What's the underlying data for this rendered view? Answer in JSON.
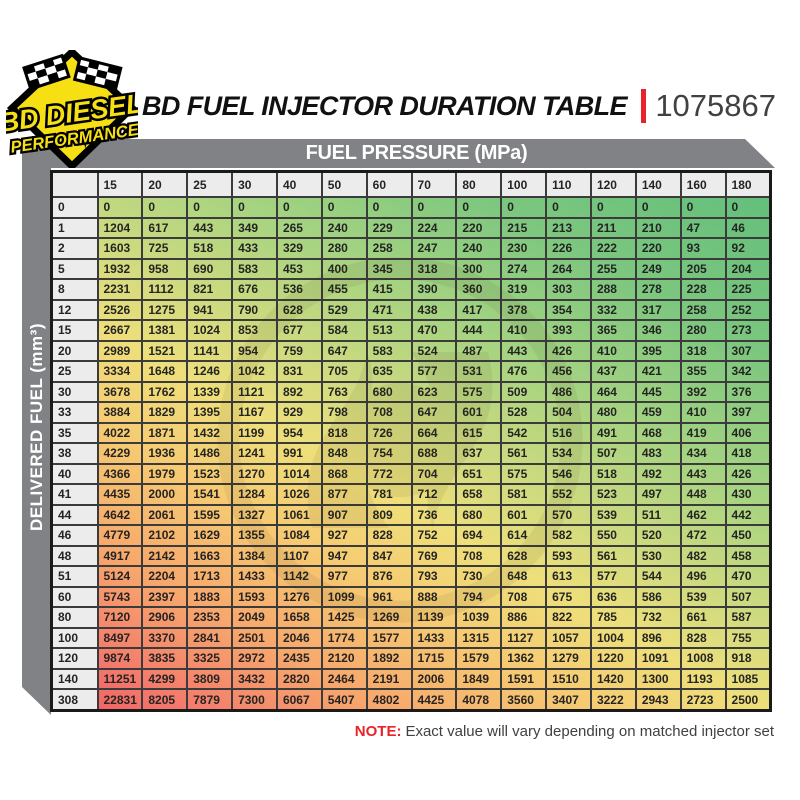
{
  "logo": {
    "line1": "BD DIESEL",
    "line2": "PERFORMANCE"
  },
  "title": {
    "text": "BD FUEL INJECTOR DURATION TABLE",
    "part_number": "1075867"
  },
  "note": {
    "label": "NOTE:",
    "text": "Exact value will vary depending on matched injector set"
  },
  "colors": {
    "accent_red": "#e8232a",
    "chrome_gray": "#808285",
    "header_cell": "#ececec",
    "grid_border": "#3b3b3b",
    "logo_yellow": "#f6e014",
    "scale_low_green": "#5fbe7a",
    "scale_mid_yellow": "#eedf7a",
    "scale_high_red": "#ef5a60"
  },
  "chart_data": {
    "type": "heatmap",
    "title": "BD FUEL INJECTOR DURATION TABLE",
    "part_number": "1075867",
    "xlabel": "FUEL PRESSURE (MPa)",
    "ylabel": "DELIVERED FUEL (mm³)",
    "legend_position": "none",
    "grid": true,
    "color_scale": {
      "low": "green (short duration)",
      "mid": "yellow",
      "high": "red (long duration)",
      "direction": "diagonal, red at bottom-left, green at top-right"
    },
    "columns": [
      "15",
      "20",
      "25",
      "30",
      "40",
      "50",
      "60",
      "70",
      "80",
      "100",
      "110",
      "120",
      "140",
      "160",
      "180"
    ],
    "rows": [
      {
        "fuel": "0",
        "values": [
          0,
          0,
          0,
          0,
          0,
          0,
          0,
          0,
          0,
          0,
          0,
          0,
          0,
          0,
          0
        ]
      },
      {
        "fuel": "1",
        "values": [
          1204,
          617,
          443,
          349,
          265,
          240,
          229,
          224,
          220,
          215,
          213,
          211,
          210,
          47,
          46
        ]
      },
      {
        "fuel": "2",
        "values": [
          1603,
          725,
          518,
          433,
          329,
          280,
          258,
          247,
          240,
          230,
          226,
          222,
          220,
          93,
          92
        ]
      },
      {
        "fuel": "5",
        "values": [
          1932,
          958,
          690,
          583,
          453,
          400,
          345,
          318,
          300,
          274,
          264,
          255,
          249,
          205,
          204
        ]
      },
      {
        "fuel": "8",
        "values": [
          2231,
          1112,
          821,
          676,
          536,
          455,
          415,
          390,
          360,
          319,
          303,
          288,
          278,
          228,
          225
        ]
      },
      {
        "fuel": "12",
        "values": [
          2526,
          1275,
          941,
          790,
          628,
          529,
          471,
          438,
          417,
          378,
          354,
          332,
          317,
          258,
          252
        ]
      },
      {
        "fuel": "15",
        "values": [
          2667,
          1381,
          1024,
          853,
          677,
          584,
          513,
          470,
          444,
          410,
          393,
          365,
          346,
          280,
          273
        ]
      },
      {
        "fuel": "20",
        "values": [
          2989,
          1521,
          1141,
          954,
          759,
          647,
          583,
          524,
          487,
          443,
          426,
          410,
          395,
          318,
          307
        ]
      },
      {
        "fuel": "25",
        "values": [
          3334,
          1648,
          1246,
          1042,
          831,
          705,
          635,
          577,
          531,
          476,
          456,
          437,
          421,
          355,
          342
        ]
      },
      {
        "fuel": "30",
        "values": [
          3678,
          1762,
          1339,
          1121,
          892,
          763,
          680,
          623,
          575,
          509,
          486,
          464,
          445,
          392,
          376
        ]
      },
      {
        "fuel": "33",
        "values": [
          3884,
          1829,
          1395,
          1167,
          929,
          798,
          708,
          647,
          601,
          528,
          504,
          480,
          459,
          410,
          397
        ]
      },
      {
        "fuel": "35",
        "values": [
          4022,
          1871,
          1432,
          1199,
          954,
          818,
          726,
          664,
          615,
          542,
          516,
          491,
          468,
          419,
          406
        ]
      },
      {
        "fuel": "38",
        "values": [
          4229,
          1936,
          1486,
          1241,
          991,
          848,
          754,
          688,
          637,
          561,
          534,
          507,
          483,
          434,
          418
        ]
      },
      {
        "fuel": "40",
        "values": [
          4366,
          1979,
          1523,
          1270,
          1014,
          868,
          772,
          704,
          651,
          575,
          546,
          518,
          492,
          443,
          426
        ]
      },
      {
        "fuel": "41",
        "values": [
          4435,
          2000,
          1541,
          1284,
          1026,
          877,
          781,
          712,
          658,
          581,
          552,
          523,
          497,
          448,
          430
        ]
      },
      {
        "fuel": "44",
        "values": [
          4642,
          2061,
          1595,
          1327,
          1061,
          907,
          809,
          736,
          680,
          601,
          570,
          539,
          511,
          462,
          442
        ]
      },
      {
        "fuel": "46",
        "values": [
          4779,
          2102,
          1629,
          1355,
          1084,
          927,
          828,
          752,
          694,
          614,
          582,
          550,
          520,
          472,
          450
        ]
      },
      {
        "fuel": "48",
        "values": [
          4917,
          2142,
          1663,
          1384,
          1107,
          947,
          847,
          769,
          708,
          628,
          593,
          561,
          530,
          482,
          458
        ]
      },
      {
        "fuel": "51",
        "values": [
          5124,
          2204,
          1713,
          1433,
          1142,
          977,
          876,
          793,
          730,
          648,
          613,
          577,
          544,
          496,
          470
        ]
      },
      {
        "fuel": "60",
        "values": [
          5743,
          2397,
          1883,
          1593,
          1276,
          1099,
          961,
          888,
          794,
          708,
          675,
          636,
          586,
          539,
          507
        ]
      },
      {
        "fuel": "80",
        "values": [
          7120,
          2906,
          2353,
          2049,
          1658,
          1425,
          1269,
          1139,
          1039,
          886,
          822,
          785,
          732,
          661,
          587
        ]
      },
      {
        "fuel": "100",
        "values": [
          8497,
          3370,
          2841,
          2501,
          2046,
          1774,
          1577,
          1433,
          1315,
          1127,
          1057,
          1004,
          896,
          828,
          755
        ]
      },
      {
        "fuel": "120",
        "values": [
          9874,
          3835,
          3325,
          2972,
          2435,
          2120,
          1892,
          1715,
          1579,
          1362,
          1279,
          1220,
          1091,
          1008,
          918
        ]
      },
      {
        "fuel": "140",
        "values": [
          11251,
          4299,
          3809,
          3432,
          2820,
          2464,
          2191,
          2006,
          1849,
          1591,
          1510,
          1420,
          1300,
          1193,
          1085
        ]
      },
      {
        "fuel": "308",
        "values": [
          22831,
          8205,
          7879,
          7300,
          6067,
          5407,
          4802,
          4425,
          4078,
          3560,
          3407,
          3222,
          2943,
          2723,
          2500
        ]
      }
    ]
  }
}
